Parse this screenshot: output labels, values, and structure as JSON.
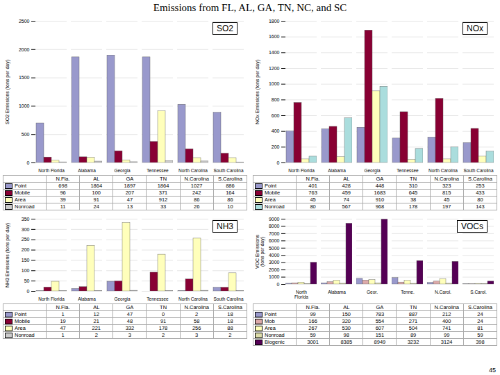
{
  "title": "Emissions from FL, AL, GA, TN, NC, and SC",
  "annotations": [
    "45"
  ],
  "table_columns": [
    "N.Fla.",
    "AL",
    "GA",
    "TN",
    "N.Carolina",
    "S.Carolina"
  ],
  "chart_data": [
    {
      "type": "bar",
      "title": "SO2",
      "ylabel": "SO2 Emissions (tons per day)",
      "categories": [
        "North Florida",
        "Alabama",
        "Georgia",
        "Tennessee",
        "North Carolina",
        "South Carolina"
      ],
      "series": [
        {
          "name": "Point",
          "color": "#9999cc",
          "values": [
            698,
            1864,
            1897,
            1864,
            1027,
            886
          ]
        },
        {
          "name": "Mobile",
          "color": "#880033",
          "values": [
            96,
            100,
            207,
            371,
            242,
            164
          ]
        },
        {
          "name": "Area",
          "color": "#ffffbb",
          "values": [
            39,
            91,
            47,
            912,
            86,
            86
          ]
        },
        {
          "name": "Nonroad",
          "color": "#cccccc",
          "values": [
            11,
            24,
            13,
            33,
            26,
            10
          ]
        }
      ],
      "ylim": [
        0,
        2500
      ],
      "yticks": [
        0,
        500,
        1000,
        1500,
        2000,
        2500
      ],
      "grid": true,
      "legend": "bottom"
    },
    {
      "type": "bar",
      "title": "NOx",
      "ylabel": "NOx Emissions (tons per day)",
      "categories": [
        "North Florida",
        "Alabama",
        "Georgia",
        "Tennessee",
        "North Carolina",
        "South Carolina"
      ],
      "series": [
        {
          "name": "Point",
          "color": "#9999cc",
          "values": [
            401,
            428,
            448,
            310,
            323,
            253
          ]
        },
        {
          "name": "Mobile",
          "color": "#880033",
          "values": [
            763,
            459,
            1683,
            645,
            815,
            433
          ]
        },
        {
          "name": "Area",
          "color": "#ffffbb",
          "values": [
            45,
            74,
            910,
            38,
            45,
            80
          ]
        },
        {
          "name": "Nonroad",
          "color": "#aadddd",
          "values": [
            80,
            567,
            968,
            178,
            197,
            143
          ]
        }
      ],
      "ylim": [
        0,
        1800
      ],
      "yticks": [
        0,
        200,
        400,
        600,
        800,
        1000,
        1200,
        1400,
        1600,
        1800
      ],
      "grid": true,
      "legend": "bottom"
    },
    {
      "type": "bar",
      "title": "NH3",
      "ylabel": "NH3 Emissions (tons per day)",
      "categories": [
        "North Florida",
        "Alabama",
        "Georgia",
        "Tennessee",
        "North Carolina",
        "South Carolina"
      ],
      "series": [
        {
          "name": "Point",
          "color": "#9999cc",
          "values": [
            1,
            12,
            47,
            0,
            2,
            18
          ]
        },
        {
          "name": "Mobile",
          "color": "#880033",
          "values": [
            19,
            21,
            48,
            91,
            58,
            18
          ]
        },
        {
          "name": "Area",
          "color": "#ffffbb",
          "values": [
            47,
            221,
            332,
            178,
            256,
            88
          ]
        },
        {
          "name": "Nonroad",
          "color": "#cccccc",
          "values": [
            1,
            2,
            3,
            2,
            3,
            2
          ]
        }
      ],
      "ylim": [
        0,
        350
      ],
      "yticks": [
        0,
        50,
        100,
        150,
        200,
        250,
        300,
        350
      ],
      "grid": true,
      "legend": "bottom"
    },
    {
      "type": "bar",
      "title": "VOCs",
      "ylabel": "VOC Emissions\n(tons per day)",
      "categories": [
        "North\nFlorida",
        "Alabama",
        "Geor.",
        "Tenne.",
        "N.Carol.",
        "S.Carol."
      ],
      "series": [
        {
          "name": "Point",
          "color": "#9999cc",
          "values": [
            99,
            150,
            783,
            887,
            212,
            24
          ]
        },
        {
          "name": "Mob",
          "color": "#ddaaaa",
          "values": [
            166,
            320,
            554,
            271,
            400,
            24
          ]
        },
        {
          "name": "Area",
          "color": "#ffffbb",
          "values": [
            267,
            530,
            607,
            504,
            741,
            81
          ]
        },
        {
          "name": "Nonroad",
          "color": "#ddddaa",
          "values": [
            59,
            98,
            151,
            89,
            99,
            59
          ]
        },
        {
          "name": "Biogenic",
          "color": "#550055",
          "values": [
            3001,
            8385,
            8949,
            3232,
            3124,
            398
          ]
        }
      ],
      "ylim": [
        0,
        9000
      ],
      "yticks": [
        0,
        1000,
        2000,
        3000,
        4000,
        5000,
        6000,
        7000,
        8000,
        9000
      ],
      "grid": true,
      "legend": "bottom"
    }
  ]
}
